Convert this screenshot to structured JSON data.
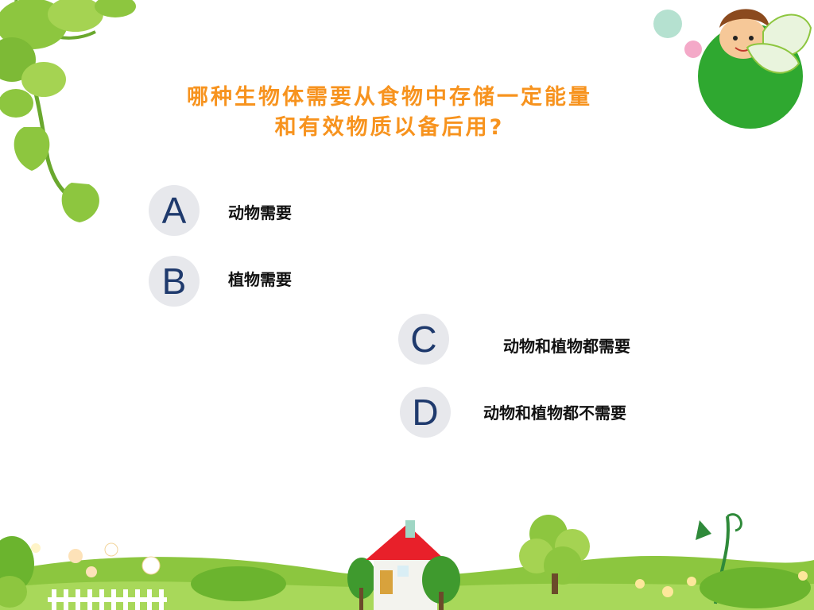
{
  "question": {
    "line1": "哪种生物体需要从食物中存储一定能量",
    "line2": "和有效物质以备后用?"
  },
  "options": [
    {
      "letter": "A",
      "text": "动物需要"
    },
    {
      "letter": "B",
      "text": "植物需要"
    },
    {
      "letter": "C",
      "text": "动物和植物都需要"
    },
    {
      "letter": "D",
      "text": "动物和植物都不需要"
    }
  ],
  "colors": {
    "question": "#f7931e",
    "option_letter": "#1f3a6d",
    "option_circle": "#e7e8ec",
    "option_text": "#111111",
    "leaf_green": "#7dc242",
    "grass_green": "#8cc63f",
    "roof_red": "#e8202a"
  }
}
